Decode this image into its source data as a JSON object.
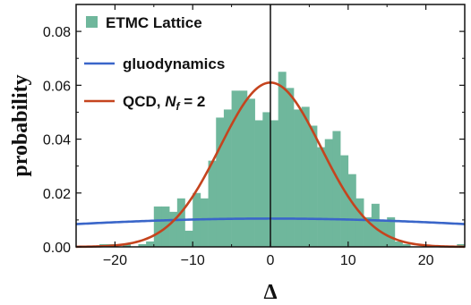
{
  "chart_data": {
    "type": "bar",
    "xlabel": "Δ",
    "ylabel": "probability",
    "xlim": [
      -25,
      25
    ],
    "ylim": [
      0,
      0.09
    ],
    "xticks": [
      -20,
      -10,
      0,
      10,
      20
    ],
    "xtick_labels": [
      "−20",
      "−10",
      "0",
      "10",
      "20"
    ],
    "yticks": [
      0.0,
      0.02,
      0.04,
      0.06,
      0.08
    ],
    "ytick_labels": [
      "0.00",
      "0.02",
      "0.04",
      "0.06",
      "0.08"
    ],
    "grid": false,
    "legend_position": "top-left",
    "legend": [
      {
        "label": "ETMC Lattice",
        "kind": "histogram",
        "color": "#6fb79c"
      },
      {
        "label": "gluodynamics",
        "kind": "line",
        "color": "#3a66c9"
      },
      {
        "label_main": "QCD, ",
        "label_sym": "N",
        "label_sub": "f",
        "label_tail": " = 2",
        "kind": "line",
        "color": "#c5441e"
      }
    ],
    "histogram": {
      "name": "ETMC Lattice",
      "color": "#6fb79c",
      "bin_width": 1,
      "bin_starts": [
        -22,
        -21,
        -20,
        -19,
        -18,
        -17,
        -16,
        -15,
        -14,
        -13,
        -12,
        -11,
        -10,
        -9,
        -8,
        -7,
        -6,
        -5,
        -4,
        -3,
        -2,
        -1,
        0,
        1,
        2,
        3,
        4,
        5,
        6,
        7,
        8,
        9,
        10,
        11,
        12,
        13,
        14,
        15,
        16,
        17,
        18,
        19,
        20,
        21,
        22,
        23,
        24
      ],
      "values": [
        0.001,
        0.001,
        0.0,
        0.001,
        0.0,
        0.001,
        0.002,
        0.015,
        0.015,
        0.013,
        0.018,
        0.006,
        0.02,
        0.018,
        0.032,
        0.048,
        0.051,
        0.058,
        0.058,
        0.055,
        0.047,
        0.05,
        0.047,
        0.065,
        0.059,
        0.051,
        0.052,
        0.045,
        0.037,
        0.04,
        0.043,
        0.034,
        0.027,
        0.018,
        0.011,
        0.016,
        0.01,
        0.011,
        0.002,
        0.001,
        0.0,
        0.0,
        0.0,
        0.0,
        0.0,
        0.0,
        0.001
      ]
    },
    "curves": [
      {
        "name": "gluodynamics",
        "color": "#3a66c9",
        "mu": 0,
        "sigma": 38,
        "peak": 0.0105
      },
      {
        "name": "QCD, N_f = 2",
        "color": "#c5441e",
        "mu": 0,
        "sigma": 6.5,
        "peak": 0.061
      }
    ],
    "vertical_line_at": 0
  }
}
